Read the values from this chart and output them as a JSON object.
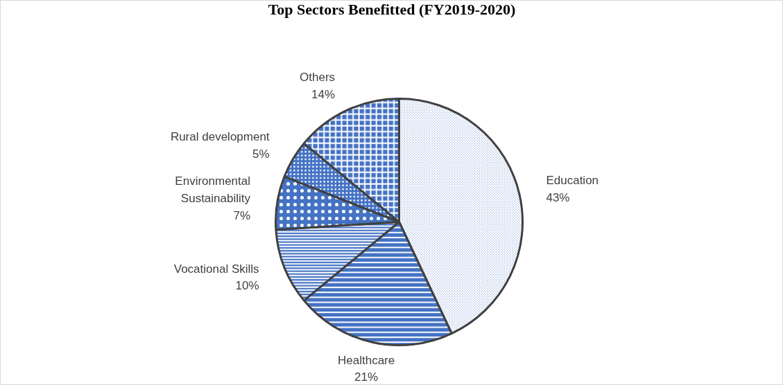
{
  "chart_data": {
    "type": "pie",
    "title": "Top Sectors Benefitted (FY2019-2020)",
    "categories": [
      "Education",
      "Healthcare",
      "Vocational Skills",
      "Environmental Sustainability",
      "Rural development",
      "Others"
    ],
    "values": [
      43,
      21,
      10,
      7,
      5,
      14
    ],
    "value_labels": [
      "43%",
      "21%",
      "10%",
      "7%",
      "5%",
      "14%"
    ],
    "colors": [
      "#4472c4",
      "#4472c4",
      "#4472c4",
      "#4472c4",
      "#4472c4",
      "#4472c4"
    ],
    "legend": false
  }
}
